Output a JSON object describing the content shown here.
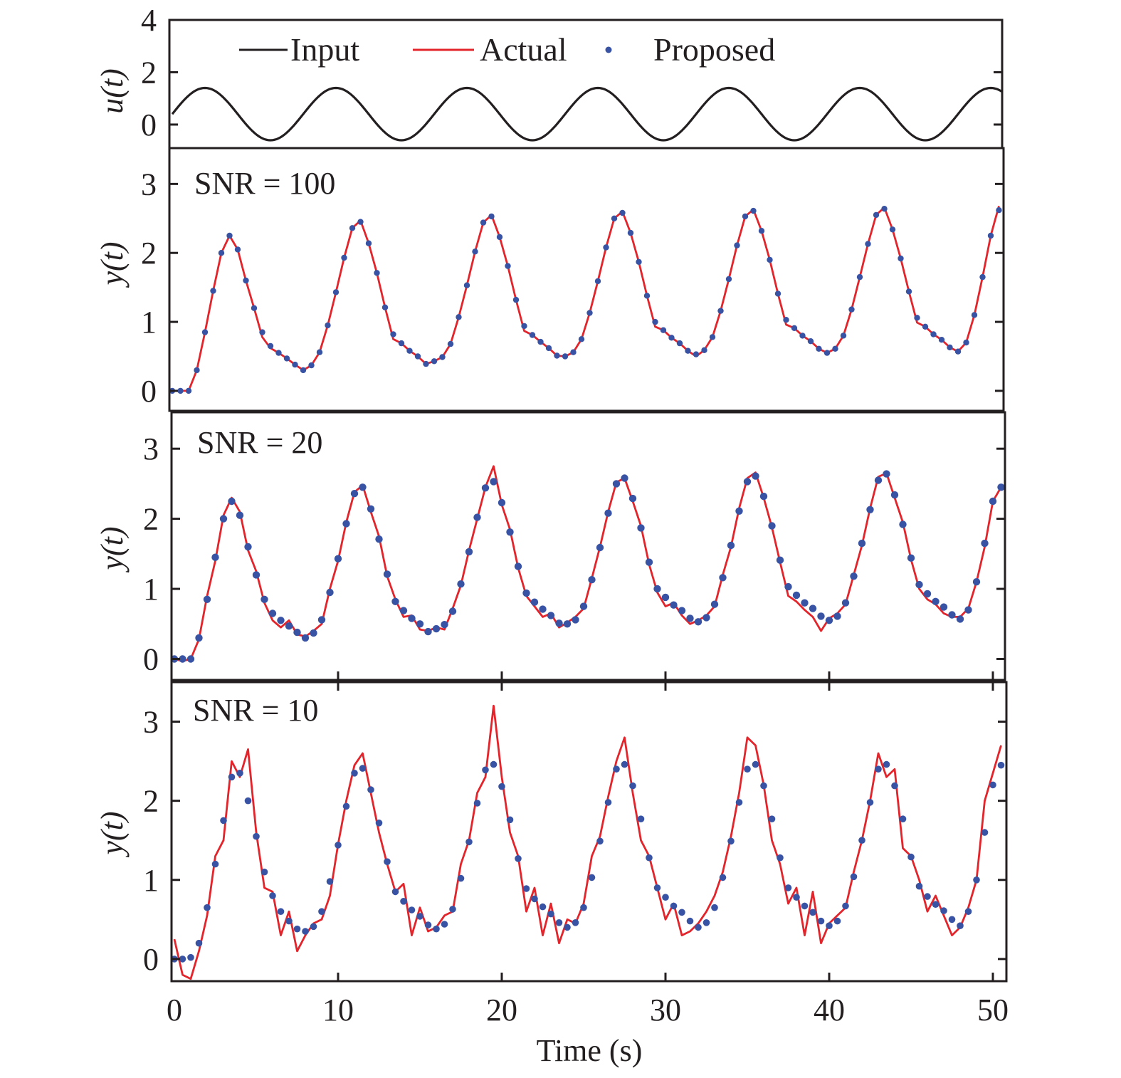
{
  "chart_data": {
    "type": "line",
    "xlabel": "Time (s)",
    "xlim": [
      0,
      50.9
    ],
    "x_ticks": [
      0,
      10,
      20,
      30,
      40,
      50
    ],
    "x_tick_labels": [
      "0",
      "10",
      "20",
      "30",
      "40",
      "50"
    ],
    "sample_step_s": 0.5,
    "legend": {
      "placement": "top (inside first panel)",
      "entries": [
        {
          "name": "Input",
          "style": "line",
          "color": "#231f20"
        },
        {
          "name": "Actual",
          "style": "line",
          "color": "#e3242b"
        },
        {
          "name": "Proposed",
          "style": "dots",
          "color": "#3953a4"
        }
      ]
    },
    "panels": [
      {
        "id": "input",
        "ylabel": "u(t)",
        "ylim": [
          -0.9,
          4.0
        ],
        "y_ticks": [
          0,
          2,
          4
        ],
        "y_tick_labels": [
          "0",
          "2",
          "4"
        ],
        "annotation": "",
        "input_signal": {
          "formula": "offset + amplitude*sin(2*pi*t/period)",
          "offset": 0.4,
          "amplitude": 1.0,
          "period_s": 8
        }
      },
      {
        "id": "snr100",
        "ylabel": "y(t)",
        "ylim": [
          -0.29,
          3.52
        ],
        "y_ticks": [
          0,
          1,
          2,
          3
        ],
        "y_tick_labels": [
          "0",
          "1",
          "2",
          "3"
        ],
        "annotation": "SNR = 100",
        "series": [
          {
            "name": "Actual",
            "values": [
              0,
              0,
              0,
              0.3,
              0.85,
              1.45,
              2.0,
              2.25,
              2.05,
              1.6,
              1.2,
              0.78,
              0.62,
              0.55,
              0.47,
              0.38,
              0.3,
              0.37,
              0.56,
              0.95,
              1.43,
              1.93,
              2.36,
              2.47,
              2.14,
              1.71,
              1.21,
              0.75,
              0.69,
              0.58,
              0.5,
              0.39,
              0.43,
              0.49,
              0.68,
              1.07,
              1.53,
              2.02,
              2.44,
              2.55,
              2.23,
              1.81,
              1.32,
              0.87,
              0.81,
              0.71,
              0.62,
              0.51,
              0.5,
              0.56,
              0.75,
              1.13,
              1.59,
              2.08,
              2.5,
              2.6,
              2.29,
              1.87,
              1.38,
              0.93,
              0.88,
              0.77,
              0.69,
              0.58,
              0.5,
              0.59,
              0.78,
              1.16,
              1.62,
              2.11,
              2.53,
              2.63,
              2.32,
              1.9,
              1.41,
              0.96,
              0.91,
              0.8,
              0.72,
              0.61,
              0.55,
              0.61,
              0.8,
              1.18,
              1.65,
              2.13,
              2.55,
              2.66,
              2.34,
              1.92,
              1.44,
              0.99,
              0.93,
              0.82,
              0.74,
              0.63,
              0.57,
              0.7,
              1.1,
              1.65,
              2.25,
              2.68
            ]
          },
          {
            "name": "Proposed",
            "values": [
              0,
              0,
              0,
              0.3,
              0.85,
              1.45,
              2.0,
              2.25,
              2.05,
              1.6,
              1.2,
              0.85,
              0.65,
              0.55,
              0.47,
              0.38,
              0.3,
              0.37,
              0.56,
              0.95,
              1.43,
              1.93,
              2.36,
              2.45,
              2.14,
              1.71,
              1.21,
              0.82,
              0.69,
              0.58,
              0.5,
              0.39,
              0.43,
              0.49,
              0.68,
              1.07,
              1.53,
              2.02,
              2.44,
              2.53,
              2.23,
              1.81,
              1.32,
              0.94,
              0.81,
              0.71,
              0.62,
              0.51,
              0.5,
              0.56,
              0.75,
              1.13,
              1.59,
              2.08,
              2.5,
              2.58,
              2.29,
              1.87,
              1.38,
              1.0,
              0.88,
              0.77,
              0.69,
              0.58,
              0.53,
              0.59,
              0.78,
              1.16,
              1.62,
              2.11,
              2.53,
              2.61,
              2.32,
              1.9,
              1.41,
              1.03,
              0.91,
              0.8,
              0.72,
              0.61,
              0.55,
              0.61,
              0.8,
              1.18,
              1.65,
              2.13,
              2.55,
              2.64,
              2.34,
              1.92,
              1.44,
              1.06,
              0.93,
              0.82,
              0.74,
              0.63,
              0.57,
              0.7,
              1.1,
              1.65,
              2.25,
              2.62
            ]
          }
        ]
      },
      {
        "id": "snr20",
        "ylabel": "y(t)",
        "ylim": [
          -0.3,
          3.52
        ],
        "y_ticks": [
          0,
          1,
          2,
          3
        ],
        "y_tick_labels": [
          "0",
          "1",
          "2",
          "3"
        ],
        "annotation": "SNR = 20",
        "series": [
          {
            "name": "Actual",
            "values": [
              0,
              -0.03,
              0,
              0.28,
              0.9,
              1.4,
              2.05,
              2.3,
              2.1,
              1.55,
              1.25,
              0.8,
              0.55,
              0.45,
              0.55,
              0.35,
              0.32,
              0.4,
              0.5,
              1.0,
              1.4,
              1.95,
              2.38,
              2.48,
              2.1,
              1.75,
              1.18,
              0.85,
              0.6,
              0.62,
              0.42,
              0.4,
              0.45,
              0.42,
              0.72,
              1.05,
              1.55,
              2.0,
              2.45,
              2.75,
              2.2,
              1.85,
              1.3,
              0.9,
              0.75,
              0.6,
              0.65,
              0.45,
              0.52,
              0.6,
              0.72,
              1.15,
              1.6,
              2.1,
              2.52,
              2.58,
              2.25,
              1.9,
              1.35,
              0.95,
              0.75,
              0.8,
              0.62,
              0.5,
              0.55,
              0.62,
              0.75,
              1.2,
              1.6,
              2.15,
              2.58,
              2.66,
              2.3,
              1.88,
              1.38,
              0.9,
              0.82,
              0.7,
              0.6,
              0.4,
              0.58,
              0.65,
              0.78,
              1.2,
              1.62,
              2.15,
              2.6,
              2.65,
              2.3,
              1.95,
              1.42,
              1.0,
              0.85,
              0.78,
              0.65,
              0.6,
              0.6,
              0.72,
              1.1,
              1.6,
              2.25,
              2.45
            ]
          },
          {
            "name": "Proposed",
            "values": [
              0,
              0,
              0,
              0.3,
              0.85,
              1.45,
              2.0,
              2.25,
              2.05,
              1.6,
              1.2,
              0.85,
              0.65,
              0.55,
              0.47,
              0.38,
              0.3,
              0.37,
              0.56,
              0.95,
              1.43,
              1.93,
              2.36,
              2.45,
              2.14,
              1.71,
              1.21,
              0.82,
              0.69,
              0.58,
              0.5,
              0.39,
              0.43,
              0.49,
              0.68,
              1.07,
              1.53,
              2.02,
              2.44,
              2.53,
              2.23,
              1.81,
              1.32,
              0.94,
              0.81,
              0.71,
              0.62,
              0.51,
              0.5,
              0.56,
              0.75,
              1.13,
              1.59,
              2.08,
              2.5,
              2.58,
              2.29,
              1.87,
              1.38,
              1.0,
              0.88,
              0.77,
              0.69,
              0.58,
              0.53,
              0.59,
              0.78,
              1.16,
              1.62,
              2.11,
              2.53,
              2.61,
              2.32,
              1.9,
              1.41,
              1.03,
              0.91,
              0.8,
              0.72,
              0.61,
              0.55,
              0.61,
              0.8,
              1.18,
              1.65,
              2.13,
              2.55,
              2.64,
              2.34,
              1.92,
              1.44,
              1.06,
              0.93,
              0.82,
              0.74,
              0.63,
              0.57,
              0.7,
              1.1,
              1.65,
              2.25,
              2.45
            ]
          }
        ]
      },
      {
        "id": "snr10",
        "ylabel": "y(t)",
        "ylim": [
          -0.28,
          3.5
        ],
        "y_ticks": [
          0,
          1,
          2,
          3
        ],
        "y_tick_labels": [
          "0",
          "1",
          "2",
          "3"
        ],
        "annotation": "SNR = 10",
        "series": [
          {
            "name": "Actual",
            "values": [
              0.25,
              -0.2,
              -0.25,
              0.1,
              0.55,
              1.3,
              1.5,
              2.5,
              2.3,
              2.65,
              1.6,
              0.9,
              0.85,
              0.3,
              0.6,
              0.1,
              0.3,
              0.45,
              0.5,
              0.8,
              1.45,
              2.0,
              2.45,
              2.6,
              2.1,
              1.6,
              1.2,
              0.85,
              0.95,
              0.3,
              0.65,
              0.35,
              0.4,
              0.55,
              0.6,
              1.2,
              1.5,
              2.1,
              2.3,
              3.2,
              2.3,
              1.6,
              1.3,
              0.6,
              0.9,
              0.3,
              0.7,
              0.2,
              0.5,
              0.45,
              0.7,
              1.3,
              1.55,
              2.05,
              2.5,
              2.8,
              2.1,
              1.5,
              1.3,
              0.9,
              0.5,
              0.7,
              0.3,
              0.35,
              0.45,
              0.6,
              0.8,
              1.1,
              1.55,
              2.1,
              2.8,
              2.7,
              2.2,
              1.5,
              1.2,
              0.7,
              0.9,
              0.3,
              0.85,
              0.2,
              0.45,
              0.55,
              0.65,
              1.1,
              1.5,
              2.0,
              2.6,
              2.3,
              2.4,
              1.4,
              1.3,
              1.0,
              0.6,
              0.8,
              0.55,
              0.3,
              0.4,
              0.65,
              1.0,
              2.0,
              2.35,
              2.7
            ]
          },
          {
            "name": "Proposed",
            "values": [
              0,
              0,
              0.02,
              0.2,
              0.65,
              1.2,
              1.75,
              2.3,
              2.35,
              2.0,
              1.55,
              1.1,
              0.8,
              0.6,
              0.48,
              0.38,
              0.35,
              0.41,
              0.6,
              0.98,
              1.44,
              1.93,
              2.35,
              2.41,
              2.14,
              1.72,
              1.23,
              0.85,
              0.73,
              0.62,
              0.54,
              0.43,
              0.38,
              0.44,
              0.63,
              1.02,
              1.48,
              1.97,
              2.39,
              2.46,
              2.18,
              1.76,
              1.27,
              0.89,
              0.76,
              0.66,
              0.57,
              0.46,
              0.4,
              0.46,
              0.65,
              1.03,
              1.49,
              1.98,
              2.4,
              2.46,
              2.19,
              1.77,
              1.28,
              0.9,
              0.78,
              0.67,
              0.59,
              0.48,
              0.4,
              0.46,
              0.65,
              1.03,
              1.49,
              1.98,
              2.4,
              2.46,
              2.19,
              1.77,
              1.28,
              0.9,
              0.78,
              0.67,
              0.59,
              0.48,
              0.42,
              0.48,
              0.67,
              1.04,
              1.5,
              1.98,
              2.4,
              2.46,
              2.19,
              1.77,
              1.29,
              0.92,
              0.79,
              0.69,
              0.61,
              0.5,
              0.42,
              0.6,
              1.0,
              1.6,
              2.2,
              2.45
            ]
          }
        ]
      }
    ]
  }
}
